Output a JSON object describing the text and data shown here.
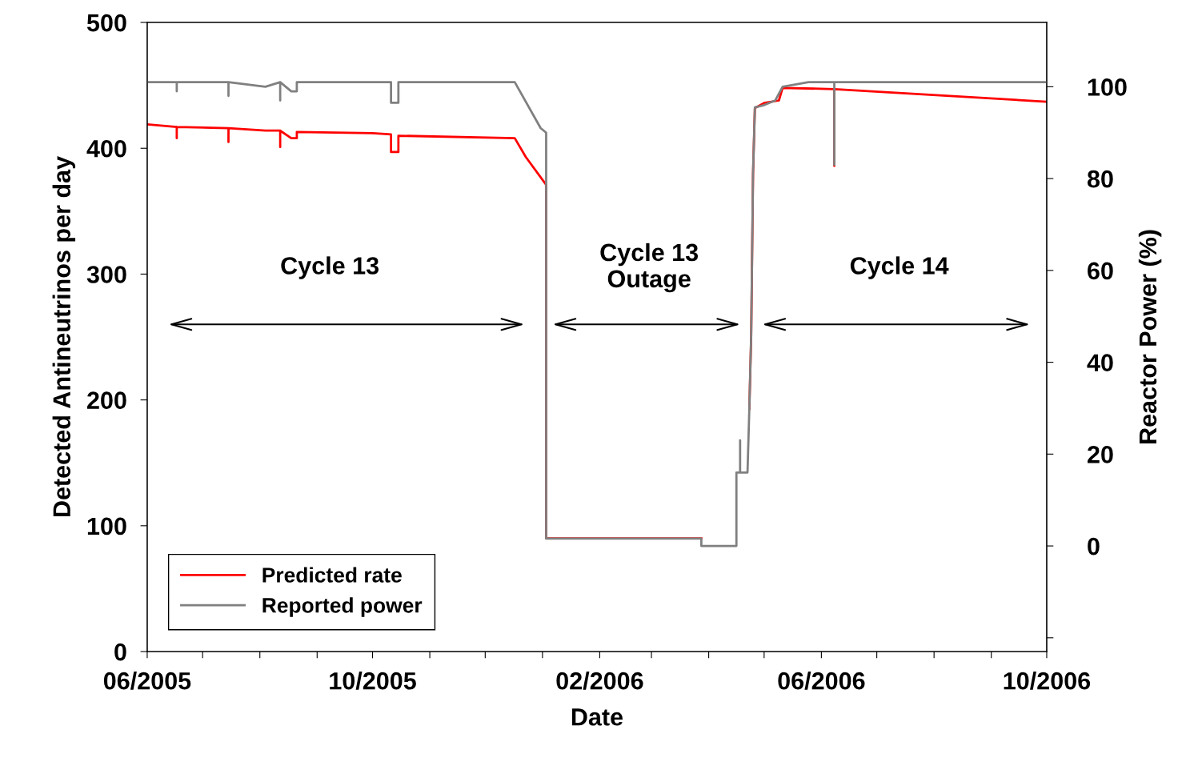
{
  "chart_data": {
    "type": "line",
    "xlabel": "Date",
    "ylabel": "Detected Antineutrinos per day",
    "y2label": "Reactor Power (%)",
    "xlim": [
      "2005-06-01",
      "2006-10-01"
    ],
    "xticks": [
      {
        "value": "2005-06-01",
        "label": "06/2005"
      },
      {
        "value": "2005-07-01",
        "label": null
      },
      {
        "value": "2005-08-01",
        "label": null
      },
      {
        "value": "2005-09-01",
        "label": null
      },
      {
        "value": "2005-10-01",
        "label": "10/2005"
      },
      {
        "value": "2005-11-01",
        "label": null
      },
      {
        "value": "2005-12-01",
        "label": null
      },
      {
        "value": "2006-01-01",
        "label": null
      },
      {
        "value": "2006-02-01",
        "label": "02/2006"
      },
      {
        "value": "2006-03-01",
        "label": null
      },
      {
        "value": "2006-04-01",
        "label": null
      },
      {
        "value": "2006-05-01",
        "label": null
      },
      {
        "value": "2006-06-01",
        "label": "06/2006"
      },
      {
        "value": "2006-07-01",
        "label": null
      },
      {
        "value": "2006-08-01",
        "label": null
      },
      {
        "value": "2006-09-01",
        "label": null
      },
      {
        "value": "2006-10-01",
        "label": "10/2006"
      }
    ],
    "ylim": [
      0,
      500
    ],
    "yticks": [
      0,
      100,
      200,
      300,
      400,
      500
    ],
    "y2lim": [
      -23,
      114
    ],
    "y2ticks": [
      {
        "value": -20,
        "label": null
      },
      0,
      20,
      40,
      60,
      80,
      100
    ],
    "grid": false,
    "legend": "bottom left",
    "marker": "none",
    "line_style": "solid",
    "series": [
      {
        "name": "Predicted rate",
        "color": "#ff0000",
        "axis": "y",
        "x": [
          "2005-06-01",
          "2005-06-17",
          "2005-06-17",
          "2005-06-17",
          "2005-07-15",
          "2005-07-15",
          "2005-07-15",
          "2005-08-04",
          "2005-08-12",
          "2005-08-12",
          "2005-08-12",
          "2005-08-18",
          "2005-08-21",
          "2005-08-21",
          "2005-10-01",
          "2005-10-11",
          "2005-10-11",
          "2005-10-15",
          "2005-10-15",
          "2005-12-17",
          "2005-12-23",
          "2006-01-03",
          "2006-01-03",
          "2006-03-28",
          "2006-04-10",
          "2006-04-23",
          "2006-04-24",
          "2006-04-25",
          "2006-04-26",
          "2006-05-01",
          "2006-05-09",
          "2006-05-11",
          "2006-06-08",
          "2006-06-08",
          "2006-06-08",
          "2006-10-01"
        ],
        "values": [
          419,
          417,
          408,
          417,
          416,
          405,
          416,
          414,
          414,
          401,
          414,
          408,
          408,
          413,
          412,
          411,
          397,
          397,
          410,
          408,
          393,
          371,
          90,
          90,
          null,
          193,
          251,
          380,
          432,
          436,
          438,
          448,
          447,
          386,
          447,
          437
        ]
      },
      {
        "name": "Reported power",
        "color": "#808080",
        "axis": "y2",
        "x": [
          "2005-06-01",
          "2005-06-17",
          "2005-06-17",
          "2005-06-17",
          "2005-07-15",
          "2005-07-15",
          "2005-07-15",
          "2005-08-04",
          "2005-08-12",
          "2005-08-12",
          "2005-08-12",
          "2005-08-18",
          "2005-08-21",
          "2005-08-21",
          "2005-10-11",
          "2005-10-11",
          "2005-10-15",
          "2005-10-15",
          "2005-12-17",
          "2005-12-31",
          "2006-01-03",
          "2006-01-03",
          "2006-03-28",
          "2006-03-28",
          "2006-04-16",
          "2006-04-16",
          "2006-04-18",
          "2006-04-18",
          "2006-04-18",
          "2006-04-22",
          "2006-04-23",
          "2006-04-24",
          "2006-04-25",
          "2006-04-26",
          "2006-05-01",
          "2006-05-07",
          "2006-05-11",
          "2006-05-25",
          "2006-06-08",
          "2006-06-08",
          "2006-06-08",
          "2006-10-01"
        ],
        "values": [
          101,
          101,
          99,
          101,
          101,
          98,
          101,
          100,
          101,
          97,
          101,
          99,
          99,
          101,
          101,
          96.5,
          96.5,
          101,
          101,
          91,
          90,
          1.6,
          1.6,
          0,
          0,
          16,
          16,
          23,
          16,
          16,
          30,
          46,
          81,
          95.5,
          96,
          97,
          100,
          101,
          101,
          83,
          101,
          101
        ]
      }
    ],
    "annotations": [
      "Cycle 13",
      "Cycle 13\nOutage",
      "Cycle 14"
    ]
  }
}
